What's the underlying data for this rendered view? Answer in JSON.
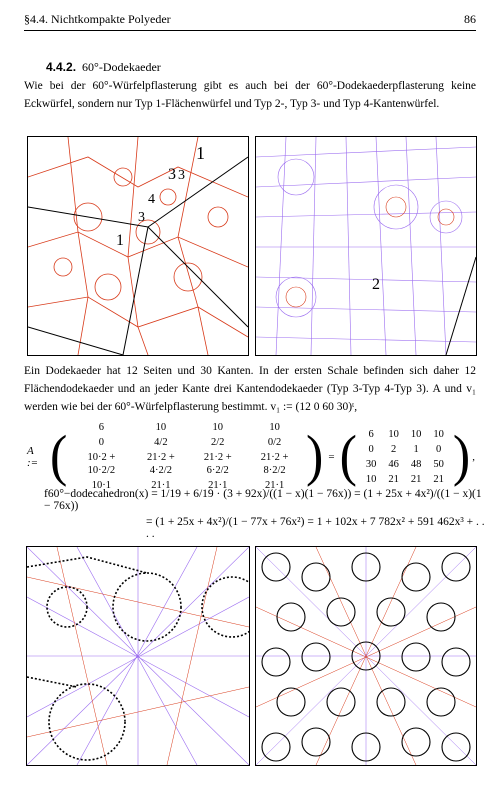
{
  "header": {
    "left": "§4.4. Nichtkompakte Polyeder",
    "right": "86"
  },
  "section": {
    "number": "4.4.2.",
    "title": "60°-Dodekaeder"
  },
  "para1": "Wie bei der 60°-Würfelpflasterung gibt es auch bei der 60°-Dodekaederpflasterung keine Eckwürfel, sondern nur Typ 1-Flächenwürfel und Typ 2-, Typ 3- und Typ 4-Kantenwürfel.",
  "fig1_labels": [
    "1",
    "3",
    "4",
    "3",
    "1",
    "3"
  ],
  "fig2_labels": [
    "2"
  ],
  "para2": "Ein Dodekaeder hat 12 Seiten und 30 Kanten. In der ersten Schale befinden sich daher 12 Flächendodekaeder und an jeder Kante drei Kantendodekaeder (Typ 3-Typ 4-Typ 3). A und v₁ werden wie bei der 60°-Würfelpflasterung bestimmt. v₁ := (12 0 60 30)ᵗ,",
  "matrix": {
    "lhs": "A :=",
    "left_rows": [
      [
        "6",
        "10",
        "10",
        "10"
      ],
      [
        "0",
        "4/2",
        "2/2",
        "0/2"
      ],
      [
        "10·2 + 10·2/2",
        "21·2 + 4·2/2",
        "21·2 + 6·2/2",
        "21·2 + 8·2/2"
      ],
      [
        "10·1",
        "21·1",
        "21·1",
        "21·1"
      ]
    ],
    "eq": "=",
    "right_rows": [
      [
        "6",
        "10",
        "10",
        "10"
      ],
      [
        "0",
        "2",
        "1",
        "0"
      ],
      [
        "30",
        "46",
        "48",
        "50"
      ],
      [
        "10",
        "21",
        "21",
        "21"
      ]
    ],
    "tail": ","
  },
  "formula1": "f60°−dodecahedron(x) = 1/19 + 6/19 · (3 + 92x)/((1 − x)(1 − 76x)) = (1 + 25x + 4x²)/((1 − x)(1 − 76x))",
  "formula2": "= (1 + 25x + 4x²)/(1 − 77x + 76x²) = 1 + 102x + 7 782x² + 591 462x³ + . . . ."
}
